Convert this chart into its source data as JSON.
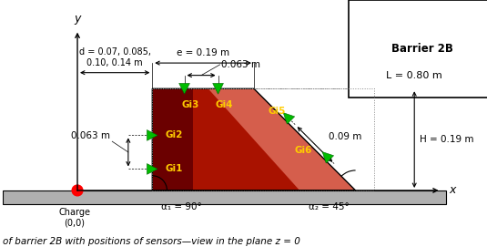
{
  "title": "of barrier 2B with positions of sensors—view in the plane z = 0",
  "barrier_label": "Barrier 2B",
  "L_label": "L = 0.80 m",
  "H_label": "H = 0.19 m",
  "e_label": "e = 0.19 m",
  "d_label": "d = 0.07, 0.085,\n0.10, 0.14 m",
  "gap_top_label": "0.063 m",
  "left_gap_label": "0.063 m",
  "right_gap_label": "0.09 m",
  "alpha1_label": "α₁ = 90°",
  "alpha2_label": "α₂ = 45°",
  "charge_label": "Charge\n(0,0)",
  "barrier_color": "#8b0000",
  "barrier_color_mid": "#b22000",
  "ground_color": "#b0b0b0",
  "sensor_color": "#00bb00",
  "fig_width": 5.35,
  "fig_height": 2.71,
  "dpi": 100,
  "xlim": [
    -0.28,
    0.6
  ],
  "ylim": [
    -0.08,
    0.33
  ]
}
